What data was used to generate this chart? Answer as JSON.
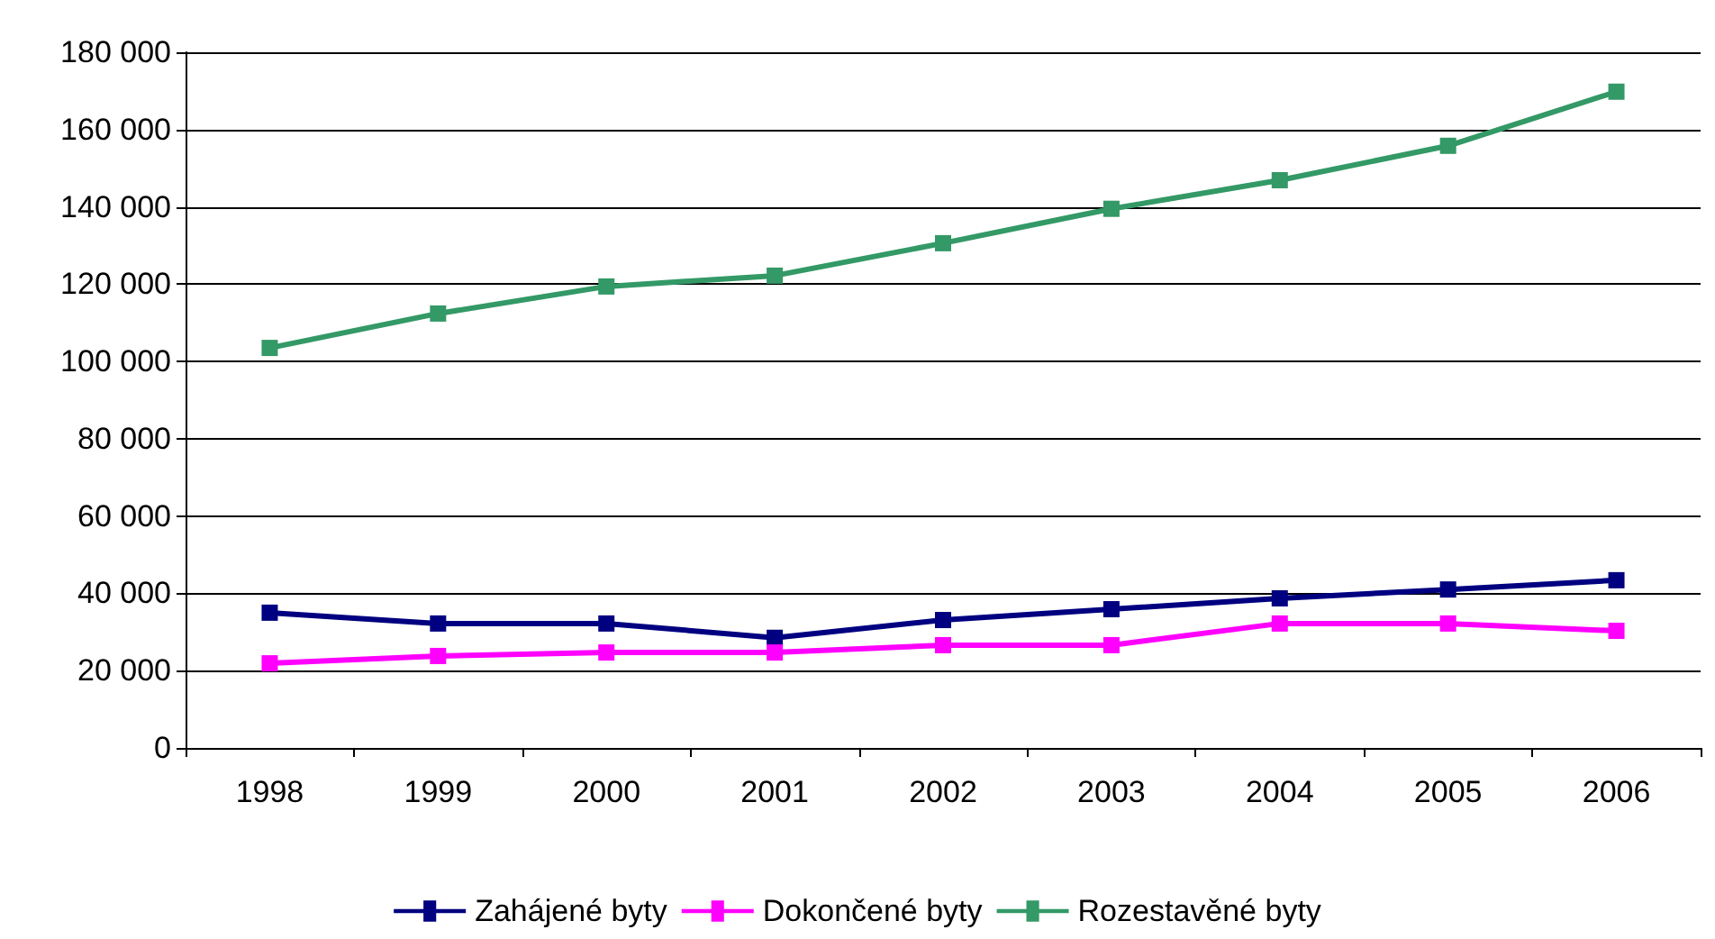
{
  "chart_data": {
    "type": "line",
    "categories": [
      "1998",
      "1999",
      "2000",
      "2001",
      "2002",
      "2003",
      "2004",
      "2005",
      "2006"
    ],
    "series": [
      {
        "name": "Zahájené byty",
        "color": "#000080",
        "values": [
          35000,
          32200,
          32200,
          28500,
          33100,
          35900,
          38700,
          41000,
          43400
        ]
      },
      {
        "name": "Dokončené byty",
        "color": "#ff00ff",
        "values": [
          21900,
          23800,
          24700,
          24700,
          26600,
          26600,
          32200,
          32200,
          30300
        ]
      },
      {
        "name": "Rozestavěné byty",
        "color": "#339966",
        "values": [
          103500,
          112400,
          119400,
          122200,
          130600,
          139500,
          146900,
          155800,
          169800
        ]
      }
    ],
    "ylim": [
      0,
      180000
    ],
    "yticks": [
      {
        "value": 0,
        "label": "0"
      },
      {
        "value": 20000,
        "label": "20 000"
      },
      {
        "value": 40000,
        "label": "40 000"
      },
      {
        "value": 60000,
        "label": "60 000"
      },
      {
        "value": 80000,
        "label": "80 000"
      },
      {
        "value": 100000,
        "label": "100 000"
      },
      {
        "value": 120000,
        "label": "120 000"
      },
      {
        "value": 140000,
        "label": "140 000"
      },
      {
        "value": 160000,
        "label": "160 000"
      },
      {
        "value": 180000,
        "label": "180 000"
      }
    ],
    "grid": "y",
    "legend": "bottom",
    "marker": "square",
    "line_style": "solid"
  }
}
